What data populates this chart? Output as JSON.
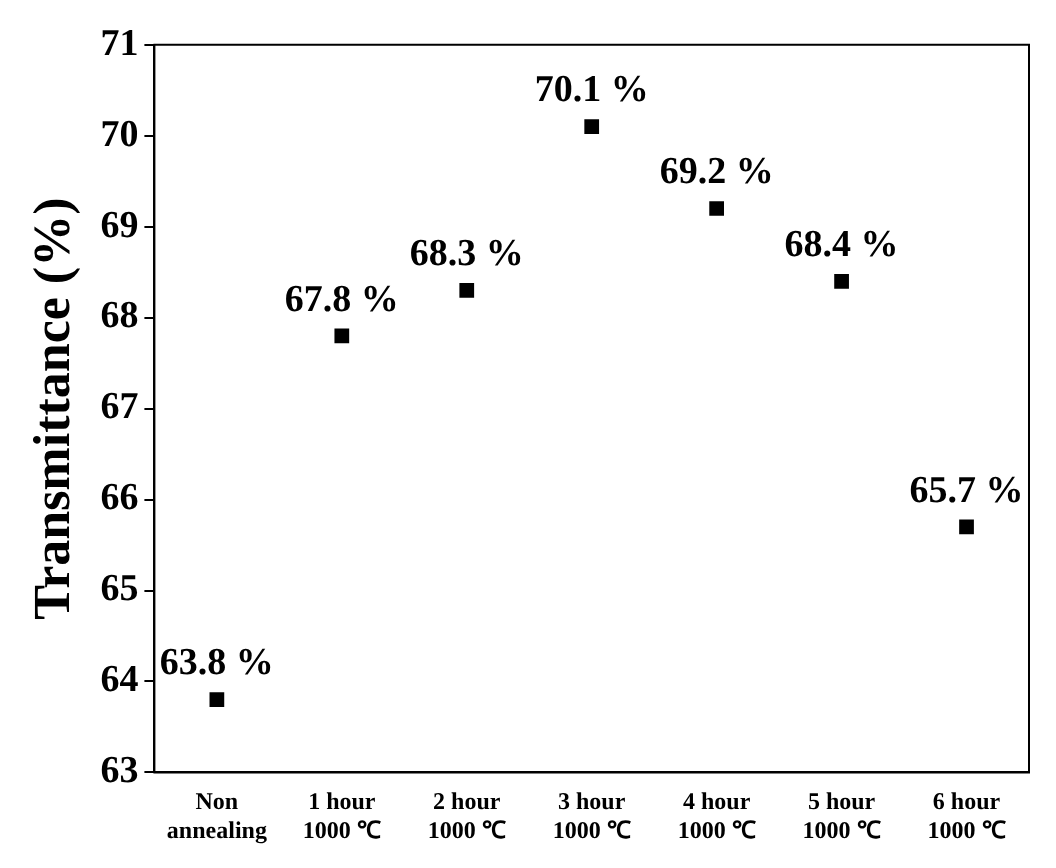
{
  "chart_data": {
    "type": "scatter",
    "ylabel": "Transmittance (%)",
    "categories": [
      "Non\nannealing",
      "1 hour\n1000 ℃",
      "2 hour\n1000 ℃",
      "3 hour\n1000 ℃",
      "4 hour\n1000 ℃",
      "5 hour\n1000 ℃",
      "6 hour\n1000 ℃"
    ],
    "series": [
      {
        "color": "#000000",
        "values": [
          63.8,
          67.8,
          68.3,
          70.1,
          69.2,
          68.4,
          65.7
        ],
        "value_labels": [
          "63.8 %",
          "67.8 %",
          "68.3 %",
          "70.1 %",
          "69.2 %",
          "68.4 %",
          "65.7 %"
        ]
      }
    ],
    "ylim": [
      63,
      71
    ],
    "yticks": [
      63,
      64,
      65,
      66,
      67,
      68,
      69,
      70,
      71
    ],
    "marker": "square",
    "grid": false,
    "legend": false
  }
}
